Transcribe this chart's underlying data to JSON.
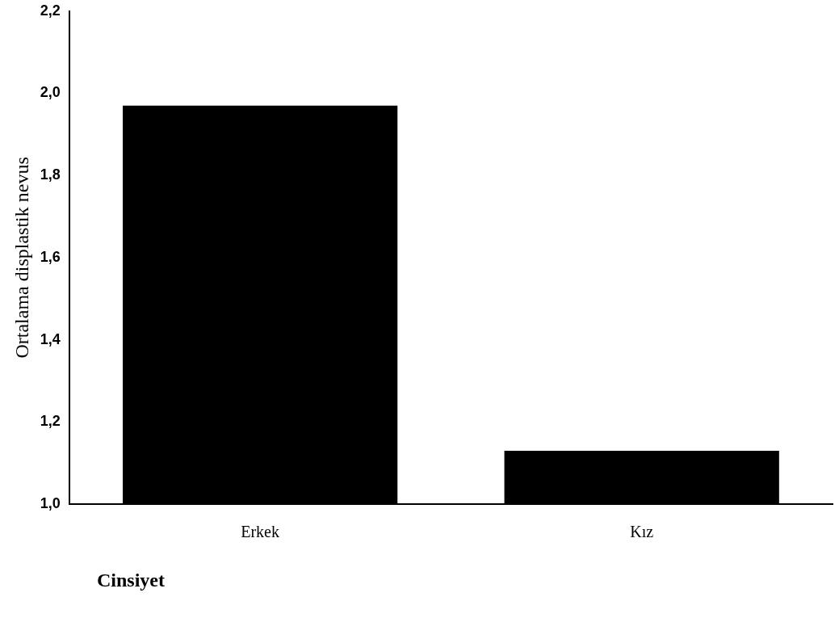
{
  "chart_data": {
    "type": "bar",
    "xlabel": "Cinsiyet",
    "ylabel": "Ortalama displastik nevus",
    "categories": [
      "Erkek",
      "Kız"
    ],
    "values": [
      1.97,
      1.13
    ],
    "color": "#000000",
    "ylim": [
      1.0,
      2.2
    ],
    "yticks": [
      {
        "value": 1.0,
        "label": "1,0"
      },
      {
        "value": 1.2,
        "label": "1,2"
      },
      {
        "value": 1.4,
        "label": "1,4"
      },
      {
        "value": 1.6,
        "label": "1,6"
      },
      {
        "value": 1.8,
        "label": "1,8"
      },
      {
        "value": 2.0,
        "label": "2,0"
      },
      {
        "value": 2.2,
        "label": "2,2"
      }
    ],
    "grid": false
  }
}
